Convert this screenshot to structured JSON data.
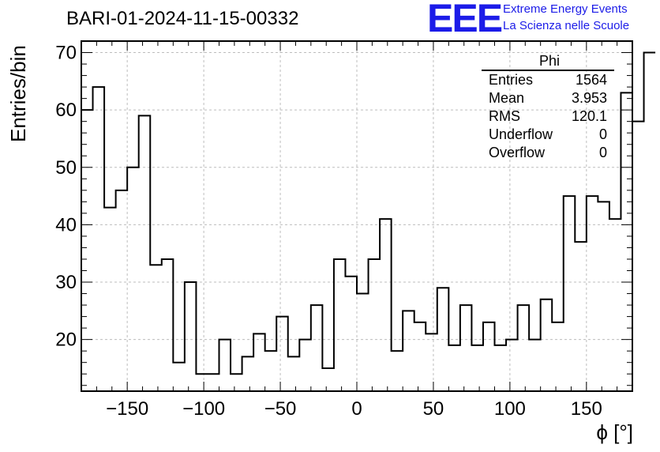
{
  "header": {
    "title": "BARI-01-2024-11-15-00332",
    "logo_text": "EEE",
    "logo_line1": "Extreme Energy Events",
    "logo_line2": "La Scienza nelle Scuole"
  },
  "stats_box": {
    "name": "Phi",
    "rows": [
      {
        "label": "Entries",
        "value": "1564"
      },
      {
        "label": "Mean",
        "value": "3.953"
      },
      {
        "label": "RMS",
        "value": "120.1"
      },
      {
        "label": "Underflow",
        "value": "0"
      },
      {
        "label": "Overflow",
        "value": "0"
      }
    ]
  },
  "chart_data": {
    "type": "histogram",
    "title": "BARI-01-2024-11-15-00332",
    "xlabel": "ϕ [°]",
    "ylabel": "Entries/bin",
    "xlim": [
      -180,
      180
    ],
    "ylim": [
      11,
      72
    ],
    "xticks": [
      -150,
      -100,
      -50,
      0,
      50,
      100,
      150
    ],
    "yticks": [
      20,
      30,
      40,
      50,
      60,
      70
    ],
    "grid": true,
    "bin_edges_start": -180,
    "bin_width": 7.5,
    "values": [
      60,
      64,
      43,
      46,
      50,
      59,
      33,
      34,
      16,
      30,
      14,
      14,
      20,
      14,
      17,
      21,
      18,
      24,
      17,
      20,
      26,
      15,
      34,
      31,
      28,
      34,
      41,
      18,
      25,
      23,
      21,
      29,
      19,
      26,
      19,
      23,
      19,
      20,
      26,
      20,
      27,
      23,
      45,
      37,
      45,
      44,
      41,
      63,
      58,
      70
    ],
    "line_color": "#000000",
    "grid_color": "#bdbdbd"
  }
}
